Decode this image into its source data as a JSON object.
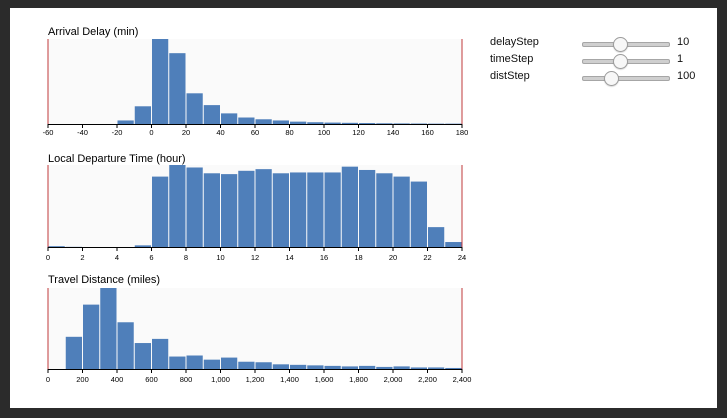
{
  "chart_data": [
    {
      "type": "bar",
      "title": "Arrival Delay (min)",
      "xlim": [
        -60,
        180
      ],
      "xticks": [
        "-60",
        "-40",
        "-20",
        "0",
        "20",
        "40",
        "60",
        "80",
        "100",
        "120",
        "140",
        "160",
        "180"
      ],
      "bin_step": 10,
      "bin_starts": [
        -60,
        -50,
        -40,
        -30,
        -20,
        -10,
        0,
        10,
        20,
        30,
        40,
        50,
        60,
        70,
        80,
        90,
        100,
        110,
        120,
        130,
        140,
        150,
        160,
        170
      ],
      "values": [
        0,
        0,
        0,
        0,
        0.3,
        1.5,
        7.2,
        6.0,
        2.6,
        1.6,
        0.9,
        0.55,
        0.4,
        0.3,
        0.2,
        0.15,
        0.12,
        0.1,
        0.08,
        0.06,
        0.05,
        0.04,
        0.03,
        0.03
      ],
      "ymax": 7.2,
      "bar_color": "#4f7fba",
      "brush_color": "#c0393b"
    },
    {
      "type": "bar",
      "title": "Local Departure Time (hour)",
      "xlim": [
        0,
        24
      ],
      "xticks": [
        "0",
        "2",
        "4",
        "6",
        "8",
        "10",
        "12",
        "14",
        "16",
        "18",
        "20",
        "22",
        "24"
      ],
      "bin_step": 1,
      "bin_starts": [
        0,
        1,
        2,
        3,
        4,
        5,
        6,
        7,
        8,
        9,
        10,
        11,
        12,
        13,
        14,
        15,
        16,
        17,
        18,
        19,
        20,
        21,
        22,
        23
      ],
      "values": [
        0.1,
        0.02,
        0,
        0,
        0,
        0.2,
        8.5,
        9.9,
        9.6,
        8.9,
        8.8,
        9.2,
        9.4,
        8.9,
        9.0,
        9.0,
        9.0,
        9.7,
        9.3,
        8.9,
        8.5,
        7.9,
        2.4,
        0.6
      ],
      "ymax": 9.9,
      "bar_color": "#4f7fba",
      "brush_color": "#c0393b"
    },
    {
      "type": "bar",
      "title": "Travel Distance (miles)",
      "xlim": [
        0,
        2400
      ],
      "xticks": [
        "0",
        "200",
        "400",
        "600",
        "800",
        "1,000",
        "1,200",
        "1,400",
        "1,600",
        "1,800",
        "2,000",
        "2,200",
        "2,400"
      ],
      "bin_step": 100,
      "bin_starts": [
        100,
        200,
        300,
        400,
        500,
        600,
        700,
        800,
        900,
        1000,
        1100,
        1200,
        1300,
        1400,
        1500,
        1600,
        1700,
        1800,
        1900,
        2000,
        2100,
        2200,
        2300
      ],
      "values": [
        3.1,
        6.2,
        7.8,
        4.5,
        2.5,
        2.9,
        1.2,
        1.3,
        0.9,
        1.1,
        0.7,
        0.65,
        0.45,
        0.4,
        0.35,
        0.3,
        0.25,
        0.3,
        0.2,
        0.25,
        0.15,
        0.15,
        0.1
      ],
      "ymax": 7.8,
      "bar_color": "#4f7fba",
      "brush_color": "#c0393b"
    }
  ],
  "controls": [
    {
      "label": "delayStep",
      "value": "10",
      "fraction": 0.43
    },
    {
      "label": "timeStep",
      "value": "1",
      "fraction": 0.43
    },
    {
      "label": "distStep",
      "value": "100",
      "fraction": 0.32
    }
  ]
}
